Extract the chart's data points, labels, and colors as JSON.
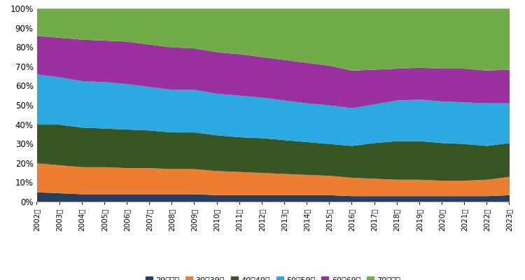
{
  "years": [
    2002,
    2003,
    2004,
    2005,
    2006,
    2007,
    2008,
    2009,
    2010,
    2011,
    2012,
    2013,
    2014,
    2015,
    2016,
    2017,
    2018,
    2019,
    2020,
    2021,
    2022,
    2023
  ],
  "age_groups": [
    "29歳以下",
    "30－39歳",
    "40－49歳",
    "50－59歳",
    "60－69歳",
    "70歳以上"
  ],
  "colors": [
    "#243f60",
    "#ed7d31",
    "#375623",
    "#2baae2",
    "#9b30a0",
    "#70ad47"
  ],
  "data": {
    "29歳以下": [
      5.0,
      4.5,
      4.0,
      4.0,
      4.0,
      4.0,
      4.0,
      4.0,
      3.5,
      3.5,
      3.5,
      3.5,
      3.5,
      3.5,
      3.0,
      3.0,
      3.0,
      3.0,
      3.0,
      3.0,
      3.0,
      3.5
    ],
    "30－39歳": [
      15.0,
      14.5,
      14.0,
      14.0,
      13.5,
      13.5,
      13.0,
      13.0,
      12.5,
      12.0,
      11.5,
      11.0,
      10.5,
      10.0,
      9.5,
      9.0,
      8.5,
      8.5,
      8.0,
      8.0,
      8.5,
      9.5
    ],
    "40－49歳": [
      20.0,
      21.0,
      20.5,
      20.0,
      20.0,
      19.5,
      19.0,
      19.0,
      18.5,
      18.0,
      18.0,
      17.5,
      17.0,
      16.5,
      16.5,
      18.5,
      20.0,
      20.0,
      19.5,
      19.0,
      17.5,
      17.5
    ],
    "50－59歳": [
      26.0,
      24.5,
      24.0,
      24.0,
      23.5,
      22.5,
      22.0,
      22.0,
      21.5,
      21.5,
      21.0,
      20.5,
      20.0,
      20.0,
      19.5,
      20.0,
      21.0,
      21.5,
      21.5,
      21.5,
      22.0,
      20.5
    ],
    "60－69歳": [
      20.0,
      20.5,
      21.5,
      21.5,
      22.0,
      22.0,
      22.0,
      21.5,
      21.5,
      21.5,
      21.0,
      21.0,
      21.0,
      20.5,
      19.5,
      18.0,
      16.5,
      16.5,
      17.0,
      17.5,
      17.0,
      17.5
    ],
    "70歳以上": [
      14.0,
      15.0,
      16.0,
      16.5,
      17.0,
      18.5,
      20.0,
      20.5,
      22.5,
      23.5,
      25.0,
      26.5,
      28.0,
      29.5,
      32.0,
      31.5,
      31.0,
      30.5,
      31.0,
      31.0,
      32.0,
      31.5
    ]
  },
  "ytick_labels": [
    "0%",
    "10%",
    "20%",
    "30%",
    "40%",
    "50%",
    "60%",
    "70%",
    "80%",
    "90%",
    "100%"
  ],
  "yticks": [
    0,
    10,
    20,
    30,
    40,
    50,
    60,
    70,
    80,
    90,
    100
  ],
  "background_color": "#ffffff",
  "grid_color": "#d9d9d9",
  "legend_items": [
    "29歳以下",
    "30－39歳",
    "40－49歳",
    "50－59歳",
    "60－69歳",
    "70歳以上"
  ]
}
